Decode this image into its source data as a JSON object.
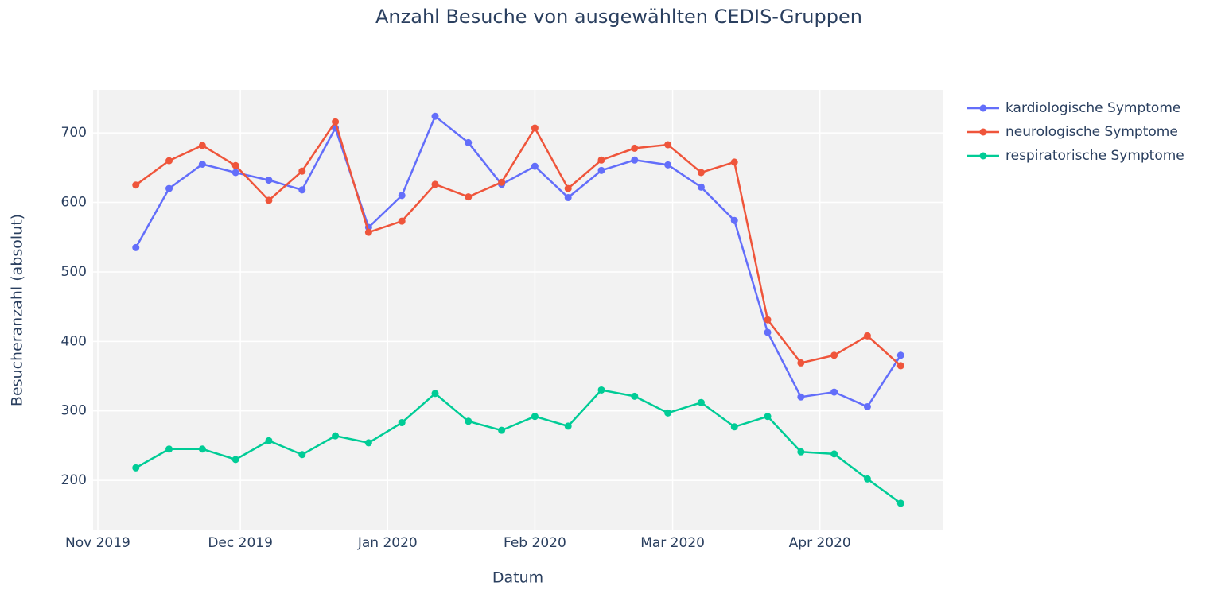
{
  "chart_data": {
    "type": "line",
    "title": "Anzahl Besuche von ausgewählten CEDIS-Gruppen",
    "x_label": "Datum",
    "y_label": "Besucheranzahl (absolut)",
    "x": [
      "2019-11-09",
      "2019-11-16",
      "2019-11-23",
      "2019-11-30",
      "2019-12-07",
      "2019-12-14",
      "2019-12-21",
      "2019-12-28",
      "2020-01-04",
      "2020-01-11",
      "2020-01-18",
      "2020-01-25",
      "2020-02-01",
      "2020-02-08",
      "2020-02-15",
      "2020-02-22",
      "2020-02-29",
      "2020-03-07",
      "2020-03-14",
      "2020-03-21",
      "2020-03-28",
      "2020-04-04",
      "2020-04-11",
      "2020-04-18"
    ],
    "series": [
      {
        "name": "kardiologische Symptome",
        "color": "#636efa",
        "values": [
          535,
          620,
          655,
          643,
          632,
          618,
          707,
          564,
          610,
          724,
          686,
          626,
          652,
          607,
          646,
          661,
          654,
          622,
          574,
          413,
          320,
          327,
          306,
          380
        ]
      },
      {
        "name": "neurologische Symptome",
        "color": "#ef553b",
        "values": [
          625,
          660,
          682,
          653,
          603,
          645,
          716,
          557,
          573,
          626,
          608,
          629,
          707,
          620,
          661,
          678,
          683,
          643,
          658,
          431,
          369,
          380,
          408,
          365
        ]
      },
      {
        "name": "respiratorische Symptome",
        "color": "#00cc96",
        "values": [
          218,
          245,
          245,
          230,
          257,
          237,
          264,
          254,
          283,
          325,
          285,
          272,
          292,
          278,
          330,
          321,
          297,
          312,
          277,
          292,
          241,
          238,
          202,
          167
        ]
      }
    ],
    "xlim": [
      "2019-10-31",
      "2020-04-27"
    ],
    "xticks": [
      {
        "value": "2019-11-01",
        "label": "Nov 2019"
      },
      {
        "value": "2019-12-01",
        "label": "Dec 2019"
      },
      {
        "value": "2020-01-01",
        "label": "Jan 2020"
      },
      {
        "value": "2020-02-01",
        "label": "Feb 2020"
      },
      {
        "value": "2020-03-01",
        "label": "Mar 2020"
      },
      {
        "value": "2020-04-01",
        "label": "Apr 2020"
      }
    ],
    "ylim": [
      128,
      762
    ],
    "yticks": [
      200,
      300,
      400,
      500,
      600,
      700
    ],
    "grid": true,
    "legend": "right"
  }
}
